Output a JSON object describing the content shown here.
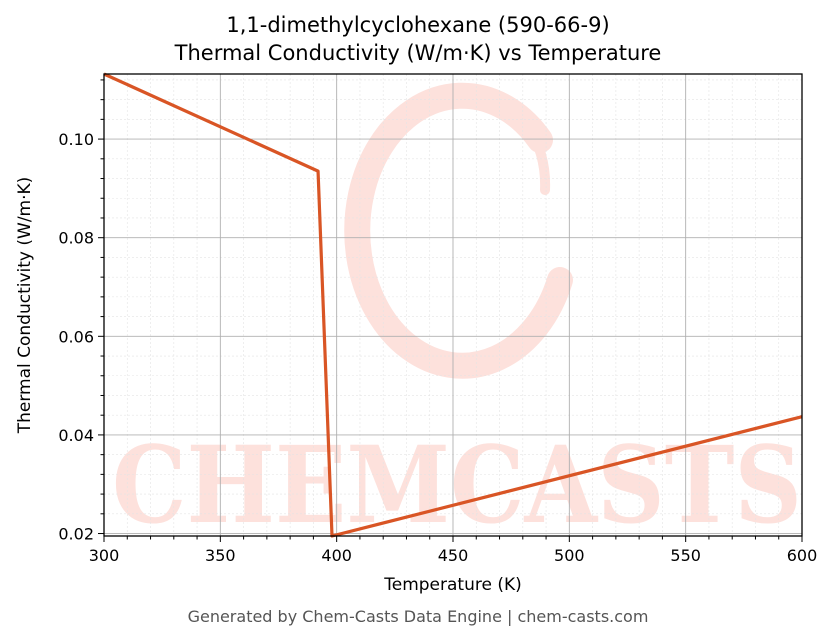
{
  "header": {
    "title_line1": "1,1-dimethylcyclohexane (590-66-9)",
    "title_line2": "Thermal Conductivity (W/m·K) vs Temperature"
  },
  "footer": {
    "text": "Generated by Chem-Casts Data Engine | chem-casts.com"
  },
  "watermark": {
    "text": "CHEMCASTS",
    "color": "#fde1dc"
  },
  "chart_data": {
    "type": "line",
    "title": "1,1-dimethylcyclohexane (590-66-9)\nThermal Conductivity (W/m·K) vs Temperature",
    "xlabel": "Temperature (K)",
    "ylabel": "Thermal Conductivity (W/m·K)",
    "xlim": [
      300,
      600
    ],
    "ylim": [
      0.0195,
      0.1132
    ],
    "xticks": [
      300,
      350,
      400,
      450,
      500,
      550,
      600
    ],
    "xtick_labels": [
      "300",
      "350",
      "400",
      "450",
      "500",
      "550",
      "600"
    ],
    "yticks": [
      0.02,
      0.04,
      0.06,
      0.08,
      0.1
    ],
    "ytick_labels": [
      "0.02",
      "0.04",
      "0.06",
      "0.08",
      "0.10"
    ],
    "grid": true,
    "line_color": "#d95525",
    "series": [
      {
        "x": [
          300,
          392,
          398,
          600
        ],
        "y": [
          0.1132,
          0.0935,
          0.0195,
          0.0437
        ]
      }
    ]
  }
}
